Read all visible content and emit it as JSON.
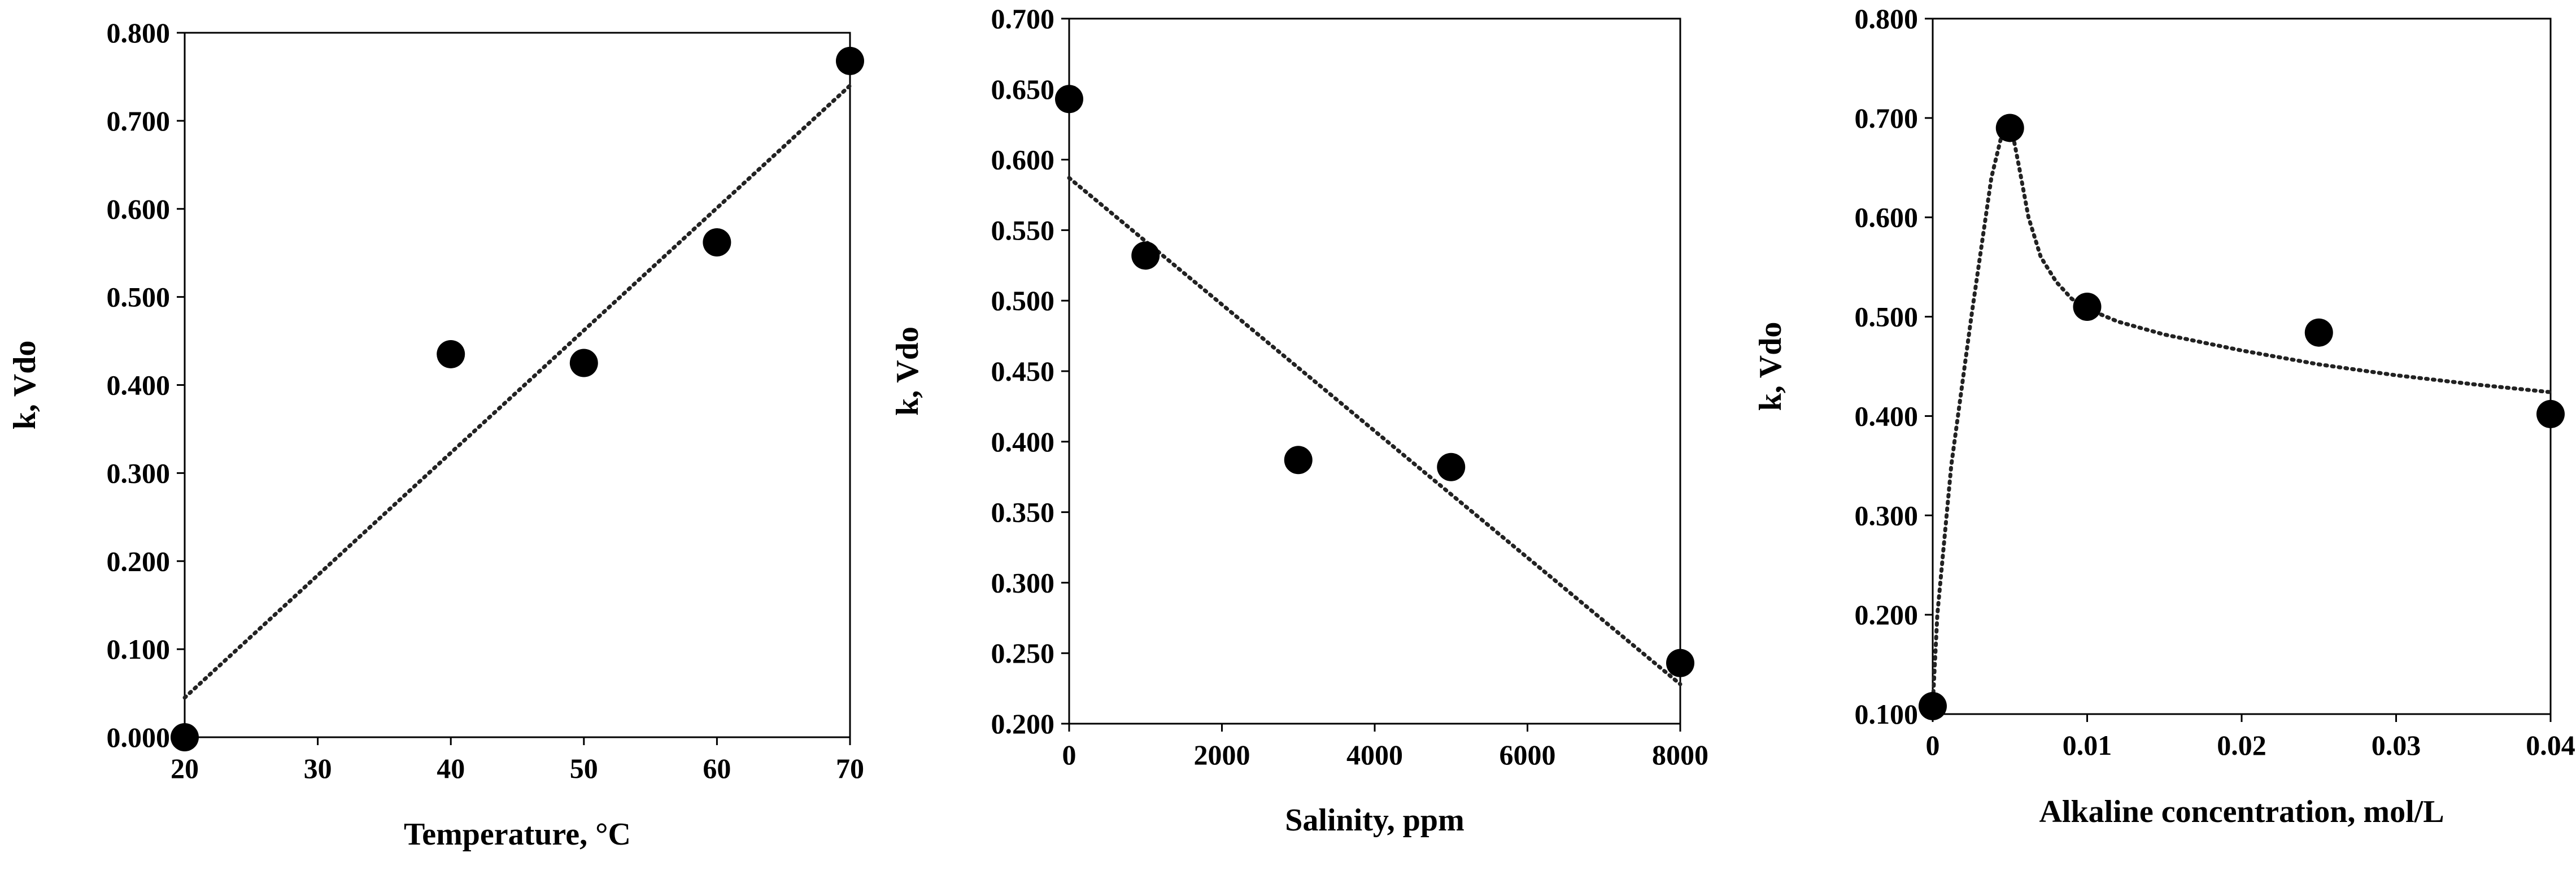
{
  "chart_data": [
    {
      "type": "scatter",
      "title": "",
      "xlabel": "Temperature, °C",
      "ylabel": "k, Vdo",
      "xlim": [
        20,
        70
      ],
      "ylim": [
        0,
        0.8
      ],
      "xticks": [
        20,
        30,
        40,
        50,
        60,
        70
      ],
      "xtick_labels": [
        "20",
        "30",
        "40",
        "50",
        "60",
        "70"
      ],
      "yticks": [
        0,
        0.1,
        0.2,
        0.3,
        0.4,
        0.5,
        0.6,
        0.7,
        0.8
      ],
      "ytick_labels": [
        "0.000",
        "0.100",
        "0.200",
        "0.300",
        "0.400",
        "0.500",
        "0.600",
        "0.700",
        "0.800"
      ],
      "series": [
        {
          "x": [
            20,
            40,
            50,
            60,
            70
          ],
          "y": [
            0.0,
            0.435,
            0.425,
            0.562,
            0.768
          ]
        }
      ],
      "trendline": {
        "type": "linear",
        "x": [
          20,
          70
        ],
        "y": [
          0.045,
          0.74
        ]
      },
      "grid": false,
      "legend": "none"
    },
    {
      "type": "scatter",
      "title": "",
      "xlabel": "Salinity, ppm",
      "ylabel": "k, Vdo",
      "xlim": [
        0,
        8000
      ],
      "ylim": [
        0.2,
        0.7
      ],
      "xticks": [
        0,
        2000,
        4000,
        6000,
        8000
      ],
      "xtick_labels": [
        "0",
        "2000",
        "4000",
        "6000",
        "8000"
      ],
      "yticks": [
        0.2,
        0.25,
        0.3,
        0.35,
        0.4,
        0.45,
        0.5,
        0.55,
        0.6,
        0.65,
        0.7
      ],
      "ytick_labels": [
        "0.200",
        "0.250",
        "0.300",
        "0.350",
        "0.400",
        "0.450",
        "0.500",
        "0.550",
        "0.600",
        "0.650",
        "0.700"
      ],
      "series": [
        {
          "x": [
            0,
            1000,
            3000,
            5000,
            8000
          ],
          "y": [
            0.643,
            0.532,
            0.387,
            0.382,
            0.243
          ]
        }
      ],
      "trendline": {
        "type": "linear",
        "x": [
          0,
          8000
        ],
        "y": [
          0.587,
          0.228
        ]
      },
      "grid": false,
      "legend": "none"
    },
    {
      "type": "scatter",
      "title": "",
      "xlabel": "Alkaline concentration, mol/L",
      "ylabel": "k, Vdo",
      "xlim": [
        0,
        0.04
      ],
      "ylim": [
        0.1,
        0.8
      ],
      "xticks": [
        0,
        0.01,
        0.02,
        0.03,
        0.04
      ],
      "xtick_labels": [
        "0",
        "0.01",
        "0.02",
        "0.03",
        "0.04"
      ],
      "yticks": [
        0.1,
        0.2,
        0.3,
        0.4,
        0.5,
        0.6,
        0.7,
        0.8
      ],
      "ytick_labels": [
        "0.100",
        "0.200",
        "0.300",
        "0.400",
        "0.500",
        "0.600",
        "0.700",
        "0.800"
      ],
      "series": [
        {
          "x": [
            0,
            0.005,
            0.01,
            0.025,
            0.04
          ],
          "y": [
            0.108,
            0.69,
            0.51,
            0.484,
            0.402
          ]
        }
      ],
      "trendline": {
        "type": "curve",
        "x": [
          0,
          0.0003,
          0.0012,
          0.0025,
          0.0038,
          0.0045,
          0.0051,
          0.0056,
          0.0062,
          0.007,
          0.008,
          0.009,
          0.01,
          0.012,
          0.015,
          0.02,
          0.025,
          0.03,
          0.035,
          0.04
        ],
        "y": [
          0.108,
          0.2,
          0.35,
          0.5,
          0.64,
          0.685,
          0.69,
          0.65,
          0.6,
          0.56,
          0.535,
          0.518,
          0.508,
          0.495,
          0.482,
          0.466,
          0.452,
          0.441,
          0.432,
          0.424
        ]
      },
      "grid": false,
      "legend": "none"
    }
  ]
}
